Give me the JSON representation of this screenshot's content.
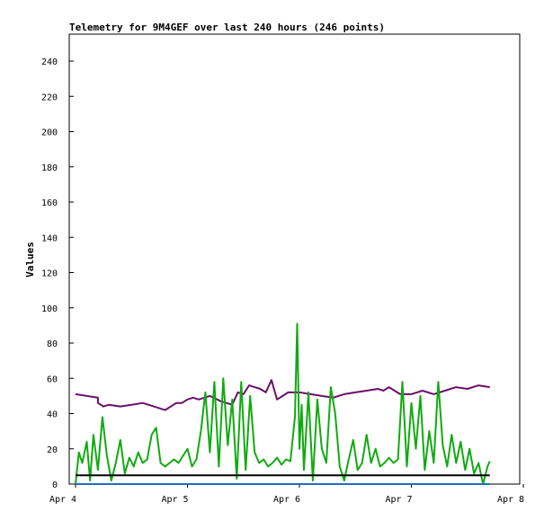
{
  "chart_data": {
    "type": "line",
    "title": "Telemetry for 9M4GEF over last 240 hours (246 points)",
    "xlabel": "",
    "ylabel": "Values",
    "ylim": [
      0,
      255
    ],
    "yticks": [
      0,
      20,
      40,
      60,
      80,
      100,
      120,
      140,
      160,
      180,
      200,
      220,
      240
    ],
    "xticks": [
      "Apr 4",
      "Apr 5",
      "Apr 6",
      "Apr 7",
      "Apr 8"
    ],
    "xlim": [
      0,
      4
    ],
    "grid": false,
    "legend": "none",
    "series": [
      {
        "color": "#6b0f6b",
        "x": [
          0.0,
          0.1,
          0.2,
          0.2,
          0.25,
          0.3,
          0.4,
          0.5,
          0.6,
          0.7,
          0.8,
          0.9,
          0.95,
          1.0,
          1.05,
          1.1,
          1.2,
          1.3,
          1.4,
          1.45,
          1.5,
          1.55,
          1.6,
          1.65,
          1.7,
          1.75,
          1.8,
          1.85,
          1.9,
          2.0,
          2.1,
          2.2,
          2.3,
          2.4,
          2.5,
          2.6,
          2.7,
          2.75,
          2.8,
          2.9,
          3.0,
          3.1,
          3.2,
          3.3,
          3.4,
          3.5,
          3.6,
          3.7
        ],
        "values": [
          51,
          50,
          49,
          46,
          44,
          45,
          44,
          45,
          46,
          44,
          42,
          46,
          46,
          48,
          49,
          48,
          50,
          47,
          45,
          52,
          51,
          56,
          55,
          54,
          52,
          59,
          48,
          50,
          52,
          52,
          51,
          50,
          49,
          51,
          52,
          53,
          54,
          53,
          55,
          51,
          51,
          53,
          51,
          53,
          55,
          54,
          56,
          55
        ]
      },
      {
        "color": "#11aa11",
        "x": [
          0.0,
          0.03,
          0.06,
          0.1,
          0.13,
          0.16,
          0.2,
          0.24,
          0.28,
          0.32,
          0.36,
          0.4,
          0.44,
          0.48,
          0.52,
          0.56,
          0.6,
          0.64,
          0.68,
          0.72,
          0.76,
          0.8,
          0.84,
          0.88,
          0.92,
          0.96,
          1.0,
          1.04,
          1.08,
          1.12,
          1.16,
          1.2,
          1.24,
          1.28,
          1.32,
          1.36,
          1.4,
          1.44,
          1.48,
          1.52,
          1.56,
          1.6,
          1.64,
          1.68,
          1.72,
          1.76,
          1.8,
          1.84,
          1.88,
          1.92,
          1.96,
          1.98,
          2.0,
          2.02,
          2.04,
          2.08,
          2.12,
          2.16,
          2.2,
          2.24,
          2.28,
          2.32,
          2.36,
          2.4,
          2.44,
          2.48,
          2.52,
          2.56,
          2.6,
          2.64,
          2.68,
          2.72,
          2.76,
          2.8,
          2.84,
          2.88,
          2.92,
          2.96,
          3.0,
          3.04,
          3.08,
          3.12,
          3.16,
          3.2,
          3.24,
          3.28,
          3.32,
          3.36,
          3.4,
          3.44,
          3.48,
          3.52,
          3.56,
          3.6,
          3.64,
          3.68,
          3.7
        ],
        "values": [
          0,
          18,
          12,
          24,
          2,
          28,
          8,
          38,
          16,
          2,
          12,
          25,
          6,
          15,
          10,
          18,
          12,
          14,
          28,
          32,
          12,
          10,
          12,
          14,
          12,
          16,
          20,
          10,
          14,
          30,
          52,
          18,
          58,
          10,
          60,
          22,
          48,
          3,
          58,
          8,
          50,
          18,
          12,
          14,
          10,
          12,
          15,
          11,
          14,
          13,
          38,
          91,
          20,
          45,
          8,
          52,
          2,
          48,
          20,
          12,
          55,
          40,
          10,
          2,
          14,
          25,
          8,
          12,
          28,
          12,
          20,
          10,
          12,
          15,
          12,
          14,
          58,
          10,
          46,
          20,
          50,
          8,
          30,
          12,
          58,
          22,
          10,
          28,
          12,
          24,
          8,
          20,
          6,
          12,
          0,
          10,
          13
        ]
      },
      {
        "color": "#000000",
        "x": [
          0.0,
          3.7
        ],
        "values": [
          5,
          5
        ]
      },
      {
        "color": "#1f6fbf",
        "x": [
          0.0,
          3.7
        ],
        "values": [
          0,
          0
        ]
      }
    ]
  }
}
